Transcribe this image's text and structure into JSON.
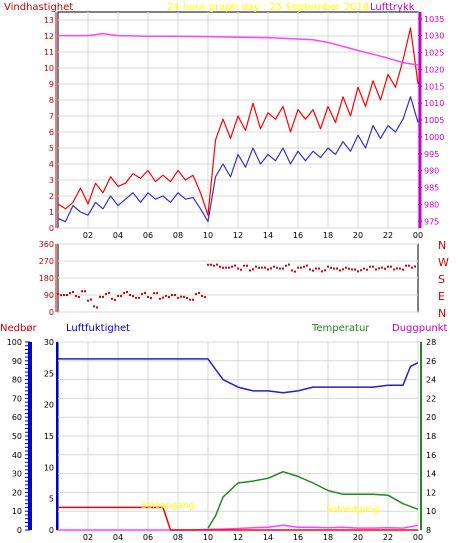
{
  "title": "24 hour graph day : 25 September 2018",
  "colors": {
    "wind_avg": "#3333cc",
    "wind_gust": "#ff0000",
    "pressure": "#ff44ff",
    "direction": "#dd0000",
    "humidity": "#2222cc",
    "temperature": "#228822",
    "dewpoint": "#ff44ff",
    "rain": "#ff0000",
    "sun_label": "#ffff00",
    "axis_red": "#cc0000",
    "axis_magenta": "#cc00cc",
    "axis_blue": "#0000cc"
  },
  "chart_data": [
    {
      "type": "line",
      "panel": "wind",
      "labels": {
        "left": "Vindhastighet",
        "right": "Lufttrykk"
      },
      "x_ticks": [
        "02",
        "04",
        "06",
        "08",
        "10",
        "12",
        "14",
        "16",
        "18",
        "20",
        "22",
        "00"
      ],
      "y_left_ticks": [
        "0",
        "1",
        "2",
        "3",
        "4",
        "5",
        "6",
        "7",
        "8",
        "9",
        "10",
        "11",
        "12",
        "13"
      ],
      "y_left_range": [
        0,
        13.5
      ],
      "y_right_ticks": [
        "975",
        "980",
        "985",
        "990",
        "995",
        "1000",
        "1005",
        "1010",
        "1015",
        "1020",
        "1025",
        "1030",
        "1035"
      ],
      "y_right_range": [
        973,
        1037
      ],
      "x_range": [
        0,
        24
      ],
      "grid": true,
      "series": [
        {
          "key": "gust",
          "x": [
            0,
            0.5,
            1,
            1.5,
            2,
            2.5,
            3,
            3.5,
            4,
            4.5,
            5,
            5.5,
            6,
            6.5,
            7,
            7.5,
            8,
            8.5,
            9,
            9.5,
            10,
            10.5,
            11,
            11.5,
            12,
            12.5,
            13,
            13.5,
            14,
            14.5,
            15,
            15.5,
            16,
            16.5,
            17,
            17.5,
            18,
            18.5,
            19,
            19.5,
            20,
            20.5,
            21,
            21.5,
            22,
            22.5,
            23,
            23.5,
            24
          ],
          "values": [
            1.5,
            1.2,
            1.6,
            2.5,
            1.5,
            2.8,
            2.2,
            3.2,
            2.6,
            2.8,
            3.4,
            3.1,
            3.6,
            2.9,
            3.3,
            2.9,
            3.6,
            3.0,
            3.3,
            2.2,
            0.8,
            5.5,
            6.8,
            5.6,
            7.0,
            6.1,
            7.8,
            6.2,
            7.2,
            6.8,
            7.6,
            6.0,
            7.4,
            6.8,
            7.4,
            6.2,
            7.6,
            6.6,
            8.2,
            7.0,
            8.8,
            7.6,
            9.2,
            8.0,
            9.6,
            8.8,
            10.5,
            12.5,
            9.0
          ]
        },
        {
          "key": "avg",
          "x": [
            0,
            0.5,
            1,
            1.5,
            2,
            2.5,
            3,
            3.5,
            4,
            4.5,
            5,
            5.5,
            6,
            6.5,
            7,
            7.5,
            8,
            8.5,
            9,
            9.5,
            10,
            10.5,
            11,
            11.5,
            12,
            12.5,
            13,
            13.5,
            14,
            14.5,
            15,
            15.5,
            16,
            16.5,
            17,
            17.5,
            18,
            18.5,
            19,
            19.5,
            20,
            20.5,
            21,
            21.5,
            22,
            22.5,
            23,
            23.5,
            24
          ],
          "values": [
            0.6,
            0.4,
            1.4,
            1.0,
            0.8,
            1.6,
            1.2,
            2.0,
            1.4,
            1.8,
            2.2,
            1.6,
            2.2,
            1.8,
            2.0,
            1.6,
            2.2,
            1.8,
            1.9,
            1.2,
            0.4,
            3.2,
            4.0,
            3.2,
            4.6,
            3.8,
            5.0,
            4.0,
            4.6,
            4.2,
            5.0,
            4.0,
            4.8,
            4.2,
            4.8,
            4.4,
            5.0,
            4.6,
            5.4,
            4.8,
            5.8,
            5.0,
            6.4,
            5.6,
            6.4,
            6.0,
            6.8,
            8.2,
            6.6
          ]
        },
        {
          "key": "pressure",
          "x": [
            0,
            2,
            3,
            4,
            6,
            8,
            10,
            12,
            14,
            16,
            17,
            18,
            19,
            20,
            21,
            22,
            23,
            24
          ],
          "values": [
            1030.0,
            1030.0,
            1030.6,
            1030.0,
            1029.8,
            1029.8,
            1029.7,
            1029.5,
            1029.4,
            1029.0,
            1028.8,
            1028.0,
            1026.8,
            1025.6,
            1024.5,
            1023.3,
            1022.0,
            1021.3
          ]
        }
      ]
    },
    {
      "type": "scatter",
      "panel": "direction",
      "y_ticks": [
        "360",
        "270",
        "180",
        "90",
        "0"
      ],
      "y_range": [
        0,
        360
      ],
      "compass": [
        "N",
        "W",
        "S",
        "E",
        "N"
      ],
      "x_range": [
        0,
        24
      ],
      "x": [
        0,
        0.4,
        0.8,
        1.2,
        1.6,
        2,
        2.4,
        2.8,
        3.2,
        3.6,
        4,
        4.4,
        4.8,
        5.2,
        5.6,
        6,
        6.4,
        6.8,
        7.2,
        7.6,
        8,
        8.4,
        8.8,
        9.2,
        9.6,
        10,
        10.4,
        10.8,
        11.2,
        11.6,
        12,
        12.4,
        12.8,
        13.2,
        13.6,
        14,
        14.4,
        14.8,
        15.2,
        15.6,
        16,
        16.4,
        16.8,
        17.2,
        17.6,
        18,
        18.4,
        18.8,
        19.2,
        19.6,
        20,
        20.4,
        20.8,
        21.2,
        21.6,
        22,
        22.4,
        22.8,
        23.2,
        23.6
      ],
      "values": [
        95,
        90,
        100,
        85,
        110,
        60,
        30,
        80,
        95,
        70,
        85,
        100,
        90,
        75,
        95,
        80,
        100,
        70,
        85,
        90,
        75,
        80,
        65,
        95,
        85,
        250,
        245,
        240,
        235,
        240,
        230,
        245,
        220,
        240,
        235,
        225,
        240,
        230,
        245,
        220,
        235,
        240,
        225,
        230,
        215,
        240,
        230,
        220,
        235,
        225,
        215,
        230,
        240,
        225,
        235,
        240,
        225,
        230,
        245,
        235
      ]
    },
    {
      "type": "line",
      "panel": "humidity_temp",
      "labels": {
        "rain": "Nedbør",
        "humidity": "Luftfuktighet",
        "temperature": "Temperatur",
        "dewpoint": "Duggpunkt"
      },
      "x_ticks": [
        "02",
        "04",
        "06",
        "08",
        "10",
        "12",
        "14",
        "16",
        "18",
        "20",
        "22",
        "00"
      ],
      "y_humidity_ticks": [
        "0",
        "10",
        "20",
        "30",
        "40",
        "50",
        "60",
        "70",
        "80",
        "90",
        "100"
      ],
      "y_humidity_range": [
        0,
        100
      ],
      "y_rain_ticks": [
        "0",
        "5",
        "10",
        "15",
        "20",
        "25",
        "30"
      ],
      "y_rain_range": [
        0,
        30
      ],
      "y_temp_ticks": [
        "8",
        "10",
        "12",
        "14",
        "16",
        "18",
        "20",
        "22",
        "24",
        "26",
        "28"
      ],
      "y_temp_range": [
        8,
        28
      ],
      "x_range": [
        0,
        24
      ],
      "grid": true,
      "annotations": [
        {
          "text": "Soloppgang",
          "x": 8.2,
          "position": "low-left"
        },
        {
          "text": "Solnedgang",
          "x": 20.6,
          "position": "low-right"
        }
      ],
      "series": [
        {
          "key": "humidity",
          "x": [
            0,
            2,
            4,
            6,
            8,
            9,
            10,
            11,
            12,
            13,
            14,
            15,
            16,
            17,
            18,
            19,
            20,
            21,
            22,
            23,
            23.5,
            24
          ],
          "values": [
            91,
            91,
            91,
            91,
            91,
            91,
            91,
            80,
            76,
            74,
            74,
            73,
            74,
            76,
            76,
            76,
            76,
            76,
            77,
            77,
            87,
            89
          ]
        },
        {
          "key": "temperature",
          "x": [
            10,
            10.5,
            11,
            12,
            13,
            14,
            15,
            16,
            17,
            18,
            19,
            20,
            21,
            22,
            23,
            24
          ],
          "values": [
            8.2,
            9.5,
            11.5,
            13.0,
            13.2,
            13.5,
            14.2,
            13.7,
            13.0,
            12.2,
            11.8,
            11.8,
            11.8,
            11.7,
            10.8,
            10.2
          ]
        },
        {
          "key": "dewpoint",
          "x": [
            0,
            1,
            2,
            3,
            4,
            5,
            6,
            7,
            8,
            9,
            10,
            11,
            12,
            13,
            14,
            15,
            16,
            17,
            18,
            19,
            20,
            21,
            22,
            23,
            24
          ],
          "values": [
            0,
            0,
            0,
            0,
            0,
            0,
            0,
            0,
            0,
            0,
            0.3,
            0.5,
            0.8,
            1.2,
            1.5,
            2.5,
            1.5,
            1.5,
            1.2,
            1.5,
            1.0,
            1.0,
            1.2,
            1.0,
            2.5
          ]
        },
        {
          "key": "rain",
          "x": [
            0,
            1,
            2,
            3,
            4,
            5,
            6,
            7,
            7.5,
            24
          ],
          "values": [
            12,
            12,
            12,
            12,
            12,
            12,
            12,
            12,
            0,
            0
          ]
        }
      ]
    }
  ]
}
